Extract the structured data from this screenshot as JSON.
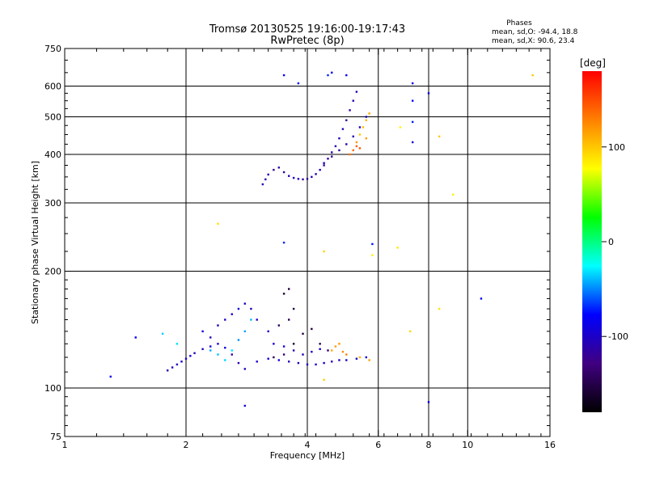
{
  "chart_data": {
    "type": "scatter",
    "title": "Tromsø 20130525 19:16:00-19:17:43",
    "subtitle": "RwPretec (8p)",
    "xlabel": "Frequency [MHz]",
    "ylabel": "Stationary phase Virtual Height [km]",
    "x_scale": "log2",
    "y_scale": "log",
    "xlim": [
      1,
      16
    ],
    "ylim": [
      75,
      750
    ],
    "x_ticks": [
      1,
      2,
      4,
      6,
      8,
      10,
      16
    ],
    "y_ticks": [
      75,
      100,
      200,
      300,
      400,
      500,
      600,
      750
    ],
    "grid": true,
    "stats": {
      "title": "Phases",
      "line_o": "mean, sd,O: -94.4, 18.8",
      "line_x": "mean, sd,X:  90.6, 23.4"
    },
    "colorbar": {
      "label": "[deg]",
      "range": [
        -180,
        180
      ],
      "ticks": [
        100,
        0,
        -100
      ],
      "colors": [
        "#ff0000",
        "#ff8000",
        "#ffff00",
        "#00ff00",
        "#00ffff",
        "#0000ff",
        "#400080",
        "#000000"
      ]
    },
    "series": [
      {
        "trace": "lower-layer",
        "phase": -100,
        "points": [
          [
            1.8,
            111
          ],
          [
            1.85,
            113
          ],
          [
            1.9,
            115
          ],
          [
            1.95,
            117
          ],
          [
            2.0,
            119
          ],
          [
            2.05,
            121
          ],
          [
            2.1,
            123
          ],
          [
            2.2,
            126
          ],
          [
            2.3,
            128
          ],
          [
            2.4,
            130
          ],
          [
            2.5,
            127
          ],
          [
            2.6,
            122
          ],
          [
            2.7,
            116
          ],
          [
            2.8,
            112
          ],
          [
            3.0,
            117
          ],
          [
            3.2,
            119
          ],
          [
            3.4,
            118
          ],
          [
            3.6,
            117
          ],
          [
            3.8,
            116
          ],
          [
            4.0,
            115
          ],
          [
            4.2,
            115
          ],
          [
            4.4,
            116
          ],
          [
            4.6,
            117
          ],
          [
            4.8,
            118
          ],
          [
            5.0,
            118
          ],
          [
            5.3,
            119
          ],
          [
            5.6,
            120
          ],
          [
            2.2,
            140
          ],
          [
            2.3,
            135
          ],
          [
            2.4,
            145
          ],
          [
            2.5,
            150
          ],
          [
            2.6,
            155
          ],
          [
            2.7,
            160
          ],
          [
            2.8,
            165
          ],
          [
            2.9,
            160
          ],
          [
            3.0,
            150
          ],
          [
            3.2,
            140
          ],
          [
            3.3,
            130
          ],
          [
            3.5,
            128
          ],
          [
            3.7,
            125
          ],
          [
            3.9,
            122
          ],
          [
            4.1,
            124
          ],
          [
            4.3,
            126
          ]
        ]
      },
      {
        "trace": "lower-layer-cyan",
        "phase": -40,
        "points": [
          [
            2.3,
            125
          ],
          [
            2.4,
            122
          ],
          [
            2.5,
            118
          ],
          [
            2.6,
            125
          ],
          [
            2.7,
            133
          ],
          [
            2.8,
            140
          ],
          [
            2.9,
            150
          ],
          [
            1.75,
            138
          ],
          [
            1.9,
            130
          ]
        ]
      },
      {
        "trace": "lower-layer-purple",
        "phase": -150,
        "points": [
          [
            3.3,
            120
          ],
          [
            3.5,
            122
          ],
          [
            3.7,
            130
          ],
          [
            3.9,
            138
          ],
          [
            4.1,
            142
          ],
          [
            4.3,
            130
          ],
          [
            4.5,
            125
          ],
          [
            3.5,
            175
          ],
          [
            3.6,
            180
          ],
          [
            3.7,
            160
          ],
          [
            3.6,
            150
          ],
          [
            3.4,
            145
          ]
        ]
      },
      {
        "trace": "lower-layer-yellow",
        "phase": 120,
        "points": [
          [
            4.6,
            125
          ],
          [
            4.7,
            128
          ],
          [
            4.8,
            130
          ],
          [
            4.9,
            124
          ],
          [
            5.0,
            122
          ],
          [
            5.4,
            120
          ],
          [
            5.7,
            118
          ]
        ]
      },
      {
        "trace": "upper-layer",
        "phase": -110,
        "points": [
          [
            3.1,
            335
          ],
          [
            3.15,
            345
          ],
          [
            3.2,
            355
          ],
          [
            3.3,
            365
          ],
          [
            3.4,
            370
          ],
          [
            3.5,
            360
          ],
          [
            3.6,
            352
          ],
          [
            3.7,
            348
          ],
          [
            3.8,
            346
          ],
          [
            3.9,
            345
          ],
          [
            4.0,
            346
          ],
          [
            4.1,
            350
          ],
          [
            4.2,
            356
          ],
          [
            4.3,
            365
          ],
          [
            4.4,
            375
          ],
          [
            4.5,
            390
          ],
          [
            4.6,
            405
          ],
          [
            4.7,
            420
          ],
          [
            4.8,
            440
          ],
          [
            4.9,
            465
          ],
          [
            5.0,
            490
          ],
          [
            5.1,
            520
          ],
          [
            5.2,
            550
          ],
          [
            5.3,
            580
          ],
          [
            4.4,
            380
          ],
          [
            4.6,
            395
          ],
          [
            4.8,
            410
          ],
          [
            5.0,
            425
          ],
          [
            5.2,
            445
          ],
          [
            5.4,
            470
          ],
          [
            5.6,
            500
          ]
        ]
      },
      {
        "trace": "upper-layer-yellow",
        "phase": 110,
        "points": [
          [
            5.3,
            430
          ],
          [
            5.4,
            450
          ],
          [
            5.5,
            470
          ],
          [
            5.6,
            490
          ],
          [
            5.7,
            510
          ],
          [
            5.6,
            440
          ]
        ]
      },
      {
        "trace": "upper-layer-red",
        "phase": 140,
        "points": [
          [
            5.1,
            400
          ],
          [
            5.2,
            410
          ],
          [
            5.3,
            420
          ],
          [
            5.4,
            415
          ]
        ]
      },
      {
        "trace": "scattered",
        "phase": -80,
        "points": [
          [
            3.5,
            640
          ],
          [
            3.8,
            610
          ],
          [
            4.5,
            640
          ],
          [
            4.6,
            650
          ],
          [
            5.0,
            640
          ],
          [
            7.3,
            610
          ],
          [
            7.3,
            550
          ],
          [
            7.3,
            485
          ],
          [
            7.3,
            430
          ],
          [
            8.0,
            575
          ],
          [
            8.0,
            92
          ],
          [
            10.8,
            170
          ],
          [
            5.8,
            235
          ],
          [
            3.5,
            237
          ],
          [
            2.8,
            90
          ],
          [
            1.3,
            107
          ],
          [
            1.5,
            135
          ]
        ]
      },
      {
        "trace": "scattered-warm",
        "phase": 90,
        "points": [
          [
            14.5,
            640
          ],
          [
            9.2,
            315
          ],
          [
            6.7,
            230
          ],
          [
            2.4,
            265
          ],
          [
            4.4,
            225
          ],
          [
            8.5,
            445
          ],
          [
            6.8,
            470
          ],
          [
            5.8,
            220
          ],
          [
            8.5,
            160
          ],
          [
            7.2,
            140
          ],
          [
            4.4,
            105
          ]
        ]
      }
    ]
  }
}
